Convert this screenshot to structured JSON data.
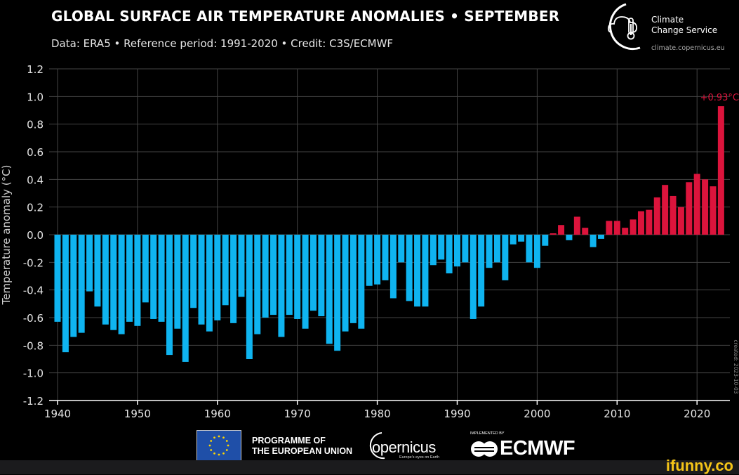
{
  "header": {
    "title": "GLOBAL SURFACE AIR TEMPERATURE ANOMALIES • SEPTEMBER",
    "subtitle": "Data: ERA5 • Reference period: 1991-2020 • Credit: C3S/ECMWF"
  },
  "brand": {
    "line1": "Climate",
    "line2": "Change Service",
    "url": "climate.copernicus.eu"
  },
  "footer": {
    "eu_line1": "PROGRAMME OF",
    "eu_line2": "THE EUROPEAN UNION",
    "copernicus": "opernicus",
    "copernicus_tag": "Europe's eyes on Earth",
    "implemented_by": "IMPLEMENTED BY",
    "ecmwf": "ECMWF"
  },
  "watermark": "ifunny.co",
  "created": "created: 2023-10-03",
  "colors": {
    "positive": "#dc143c",
    "negative": "#0fb4f0",
    "grid": "#444444",
    "background": "#000000"
  },
  "chart_data": {
    "type": "bar",
    "title": "GLOBAL SURFACE AIR TEMPERATURE ANOMALIES • SEPTEMBER",
    "xlabel": "",
    "ylabel": "Temperature anomaly (°C)",
    "ylim": [
      -1.2,
      1.2
    ],
    "xlim": [
      1940,
      2023
    ],
    "yticks": [
      "1.2",
      "1.0",
      "0.8",
      "0.6",
      "0.4",
      "0.2",
      "0.0",
      "-0.2",
      "-0.4",
      "-0.6",
      "-0.8",
      "-1.0",
      "-1.2"
    ],
    "xticks": [
      "1940",
      "1950",
      "1960",
      "1970",
      "1980",
      "1990",
      "2000",
      "2010",
      "2020"
    ],
    "grid": true,
    "annotation": "+0.93°C",
    "start_year": 1940,
    "values": [
      -0.63,
      -0.85,
      -0.74,
      -0.71,
      -0.41,
      -0.52,
      -0.65,
      -0.69,
      -0.72,
      -0.63,
      -0.66,
      -0.49,
      -0.61,
      -0.63,
      -0.87,
      -0.68,
      -0.92,
      -0.53,
      -0.65,
      -0.7,
      -0.62,
      -0.51,
      -0.64,
      -0.45,
      -0.9,
      -0.72,
      -0.6,
      -0.58,
      -0.74,
      -0.58,
      -0.61,
      -0.68,
      -0.55,
      -0.59,
      -0.79,
      -0.84,
      -0.7,
      -0.64,
      -0.68,
      -0.37,
      -0.36,
      -0.33,
      -0.46,
      -0.2,
      -0.48,
      -0.52,
      -0.52,
      -0.22,
      -0.18,
      -0.28,
      -0.23,
      -0.2,
      -0.61,
      -0.52,
      -0.24,
      -0.2,
      -0.33,
      -0.07,
      -0.05,
      -0.2,
      -0.24,
      -0.08,
      0.01,
      0.07,
      -0.04,
      0.13,
      0.05,
      -0.09,
      -0.03,
      0.1,
      0.1,
      0.05,
      0.11,
      0.17,
      0.18,
      0.27,
      0.36,
      0.28,
      0.2,
      0.38,
      0.44,
      0.4,
      0.35,
      0.93
    ]
  }
}
